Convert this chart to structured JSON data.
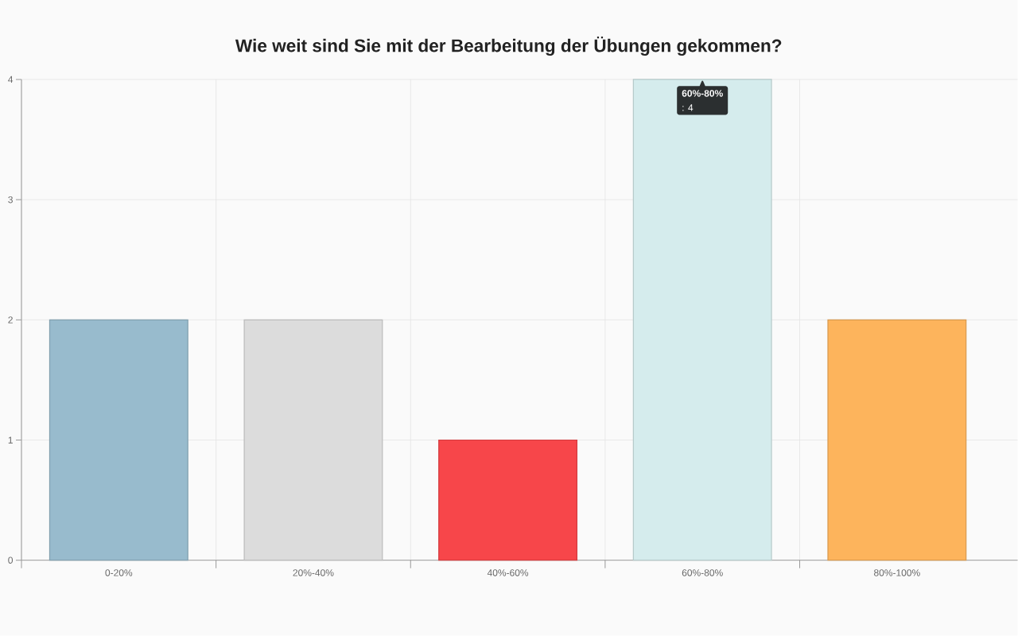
{
  "chart_data": {
    "type": "bar",
    "title": "Wie weit sind Sie mit der Bearbeitung der Übungen gekommen?",
    "categories": [
      "0-20%",
      "20%-40%",
      "40%-60%",
      "60%-80%",
      "80%-100%"
    ],
    "values": [
      2,
      2,
      1,
      4,
      2
    ],
    "colors": [
      "#98bbcd",
      "#dcdcdc",
      "#f7464a",
      "#d5eced",
      "#fdb45c"
    ],
    "ylim": [
      0,
      4
    ],
    "yticks": [
      0,
      1,
      2,
      3,
      4
    ],
    "grid": true,
    "annotations": [
      {
        "text": "60%-80%",
        "x": "60%-80%",
        "y": 4
      },
      {
        "text": ": 4",
        "x": "60%-80%",
        "y": 4
      }
    ]
  }
}
